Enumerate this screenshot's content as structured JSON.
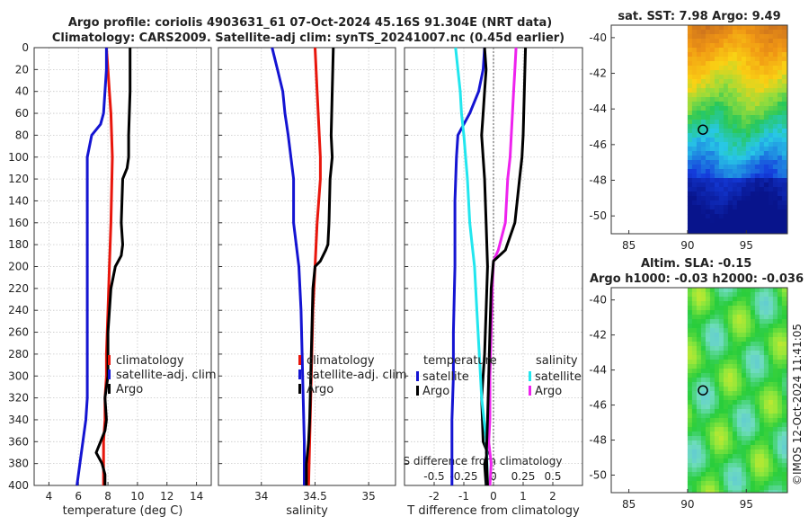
{
  "header": {
    "title_line1": "Argo profile: coriolis 4903631_61 07-Oct-2024 45.16S 91.304E (NRT data)",
    "title_line2": "Climatology: CARS2009. Satellite-adj clim: synTS_20241007.nc (0.45d earlier)"
  },
  "colors": {
    "climatology": "#e8160c",
    "satellite": "#1414d2",
    "argo": "#000000",
    "sat_salinity": "#22e6ee",
    "argo_salinity": "#ee22ee",
    "grid": "#c8c8c8"
  },
  "depth_axis": {
    "ylim": [
      0,
      400
    ],
    "ticks": [
      "0",
      "20",
      "40",
      "60",
      "80",
      "100",
      "120",
      "140",
      "160",
      "180",
      "200",
      "220",
      "240",
      "260",
      "280",
      "300",
      "320",
      "340",
      "360",
      "380",
      "400"
    ]
  },
  "chart_data": [
    {
      "id": "temperature",
      "type": "line",
      "xlabel": "temperature (deg C)",
      "ylabel": "depth",
      "xlim": [
        3,
        15
      ],
      "ylim": [
        0,
        400
      ],
      "xticks": [
        4,
        6,
        8,
        10,
        12,
        14
      ],
      "xticklabels": [
        "4",
        "6",
        "8",
        "10",
        "12",
        "14"
      ],
      "grid": true,
      "legend": {
        "position": "lower-right",
        "entries": [
          "climatology",
          "satellite-adj. clim",
          "Argo"
        ]
      },
      "series": [
        {
          "name": "climatology",
          "color": "climatology",
          "x": [
            7.9,
            8.0,
            8.1,
            8.2,
            8.3,
            8.2,
            8.1,
            8.0,
            7.9,
            7.9,
            7.8,
            7.8,
            7.7,
            7.7
          ],
          "y": [
            0,
            20,
            40,
            60,
            100,
            160,
            200,
            240,
            280,
            300,
            320,
            340,
            360,
            400
          ]
        },
        {
          "name": "satellite-adj. clim",
          "color": "satellite",
          "x": [
            7.9,
            7.9,
            7.8,
            7.7,
            7.5,
            6.9,
            6.6,
            6.6,
            6.6,
            6.6,
            6.6,
            6.6,
            6.5,
            6.3,
            6.1,
            5.9
          ],
          "y": [
            0,
            20,
            40,
            60,
            70,
            80,
            100,
            120,
            200,
            260,
            300,
            320,
            340,
            360,
            380,
            400
          ]
        },
        {
          "name": "Argo",
          "color": "argo",
          "x": [
            9.5,
            9.5,
            9.4,
            9.4,
            9.3,
            9.0,
            8.9,
            9.0,
            8.9,
            8.7,
            8.5,
            8.2,
            8.0,
            8.0,
            7.8,
            7.9,
            7.8,
            7.5,
            7.2,
            7.6,
            7.8,
            7.8
          ],
          "y": [
            0,
            40,
            80,
            100,
            110,
            120,
            160,
            180,
            190,
            195,
            200,
            220,
            260,
            300,
            320,
            340,
            350,
            360,
            370,
            380,
            390,
            400
          ]
        }
      ]
    },
    {
      "id": "salinity",
      "type": "line",
      "xlabel": "salinity",
      "ylabel": "",
      "xlim": [
        33.6,
        35.25
      ],
      "ylim": [
        0,
        400
      ],
      "xticks": [
        34,
        34.5,
        35
      ],
      "xticklabels": [
        "34",
        "34.5",
        "35"
      ],
      "grid": true,
      "legend": {
        "position": "lower-right",
        "entries": [
          "climatology",
          "satellite-adj. clim",
          "Argo"
        ]
      },
      "series": [
        {
          "name": "climatology",
          "color": "climatology",
          "x": [
            34.5,
            34.52,
            34.55,
            34.55,
            34.52,
            34.5,
            34.48,
            34.47,
            34.46,
            34.45,
            34.44
          ],
          "y": [
            0,
            40,
            100,
            120,
            160,
            200,
            240,
            280,
            320,
            360,
            400
          ]
        },
        {
          "name": "satellite-adj. clim",
          "color": "satellite",
          "x": [
            34.1,
            34.15,
            34.2,
            34.22,
            34.25,
            34.3,
            34.3,
            34.35,
            34.37,
            34.38,
            34.39,
            34.4,
            34.4
          ],
          "y": [
            0,
            20,
            40,
            60,
            80,
            120,
            160,
            200,
            240,
            280,
            320,
            360,
            400
          ]
        },
        {
          "name": "Argo",
          "color": "argo",
          "x": [
            34.67,
            34.66,
            34.65,
            34.66,
            34.64,
            34.63,
            34.62,
            34.6,
            34.55,
            34.5,
            34.48,
            34.47,
            34.46,
            34.45,
            34.44,
            34.42,
            34.42
          ],
          "y": [
            0,
            40,
            80,
            100,
            120,
            160,
            180,
            185,
            195,
            200,
            220,
            260,
            300,
            340,
            360,
            380,
            400
          ]
        }
      ]
    },
    {
      "id": "difference",
      "type": "line",
      "xlabel": "T difference from climatology",
      "xlabel_top": "S difference from climatology",
      "xlim": [
        -3,
        3
      ],
      "ylim": [
        0,
        400
      ],
      "xticks": [
        -2,
        -1,
        0,
        1,
        2
      ],
      "xticklabels": [
        "-2",
        "-1",
        "0",
        "1",
        "2"
      ],
      "top_xticks": [
        -0.5,
        -0.25,
        0,
        0.25,
        0.5
      ],
      "top_xticklabels": [
        "-0.5",
        "-0.25",
        "0",
        "0.25",
        "0.5"
      ],
      "top_scale": 4,
      "grid": true,
      "legend_groups": [
        {
          "title": "temperature",
          "entries": [
            "satellite",
            "Argo"
          ]
        },
        {
          "title": "salinity",
          "entries": [
            "satellite",
            "Argo"
          ]
        }
      ],
      "series": [
        {
          "name": "temperature satellite",
          "color": "satellite",
          "x": [
            -0.3,
            -0.35,
            -0.5,
            -0.8,
            -1.0,
            -1.2,
            -1.25,
            -1.3,
            -1.3,
            -1.35,
            -1.35,
            -1.4,
            -1.4
          ],
          "y": [
            0,
            20,
            40,
            60,
            70,
            80,
            100,
            140,
            200,
            260,
            300,
            340,
            400
          ]
        },
        {
          "name": "temperature Argo",
          "color": "argo",
          "x": [
            -0.3,
            -0.25,
            -0.3,
            -0.35,
            -0.4,
            -0.3,
            -0.25,
            -0.2,
            -0.25,
            -0.3,
            -0.4,
            -0.35,
            -0.2,
            -0.3,
            -0.25
          ],
          "y": [
            0,
            20,
            40,
            60,
            80,
            120,
            160,
            200,
            240,
            280,
            320,
            360,
            370,
            380,
            400
          ]
        },
        {
          "name": "salinity satellite",
          "color": "sat_salinity",
          "x": [
            -0.32,
            -0.3,
            -0.28,
            -0.27,
            -0.25,
            -0.22,
            -0.2,
            -0.18,
            -0.16,
            -0.14,
            -0.12,
            -0.1,
            -0.06,
            -0.05
          ],
          "y": [
            0,
            20,
            40,
            60,
            80,
            120,
            160,
            180,
            200,
            240,
            280,
            320,
            360,
            400
          ]
        },
        {
          "name": "salinity Argo",
          "color": "argo_salinity",
          "x": [
            0.19,
            0.18,
            0.17,
            0.16,
            0.15,
            0.14,
            0.12,
            0.1,
            0.04,
            0.0,
            -0.01,
            -0.02,
            -0.03,
            -0.03,
            -0.04,
            -0.02,
            -0.03
          ],
          "y": [
            0,
            20,
            40,
            60,
            80,
            100,
            120,
            160,
            185,
            195,
            220,
            260,
            300,
            340,
            360,
            380,
            400
          ]
        },
        {
          "name": "salinity Argo from raw",
          "color": "argo",
          "x": [
            0.27,
            0.26,
            0.25,
            0.24,
            0.22,
            0.18,
            0.1,
            0.0,
            -0.02,
            -0.03,
            -0.04,
            -0.05,
            -0.06,
            -0.05
          ],
          "y": [
            0,
            40,
            80,
            100,
            120,
            160,
            185,
            195,
            220,
            260,
            300,
            340,
            370,
            400
          ]
        }
      ]
    },
    {
      "id": "sst_map",
      "type": "heatmap",
      "title": "sat. SST: 7.98 Argo: 9.49",
      "xlim": [
        83.5,
        98.5
      ],
      "ylim": [
        -51,
        -39.3
      ],
      "xticks": [
        85,
        90,
        95
      ],
      "xticklabels": [
        "85",
        "90",
        "95"
      ],
      "yticks": [
        -40,
        -42,
        -44,
        -46,
        -48,
        -50
      ],
      "yticklabels": [
        "-40",
        "-42",
        "-44",
        "-46",
        "-48",
        "-50"
      ],
      "data_xlim": [
        90,
        98.5
      ],
      "profile_location": {
        "lon": 91.304,
        "lat": -45.16
      }
    },
    {
      "id": "sla_map",
      "type": "heatmap",
      "title_line1": "Altim. SLA: -0.15",
      "title_line2": "Argo h1000: -0.03 h2000: -0.036",
      "xlim": [
        83.5,
        98.5
      ],
      "ylim": [
        -51,
        -39.3
      ],
      "xticks": [
        85,
        90,
        95
      ],
      "xticklabels": [
        "85",
        "90",
        "95"
      ],
      "yticks": [
        -40,
        -42,
        -44,
        -46,
        -48,
        -50
      ],
      "yticklabels": [
        "-40",
        "-42",
        "-44",
        "-46",
        "-48",
        "-50"
      ],
      "data_xlim": [
        90,
        98.5
      ],
      "profile_location": {
        "lon": 91.304,
        "lat": -45.16
      }
    }
  ],
  "legend_labels": {
    "climatology": "climatology",
    "satellite_adj": "satellite-adj. clim",
    "argo": "Argo",
    "temperature": "temperature",
    "salinity": "salinity",
    "satellite": "satellite"
  },
  "watermark": "©IMOS 12-Oct-2024 11:41:05"
}
